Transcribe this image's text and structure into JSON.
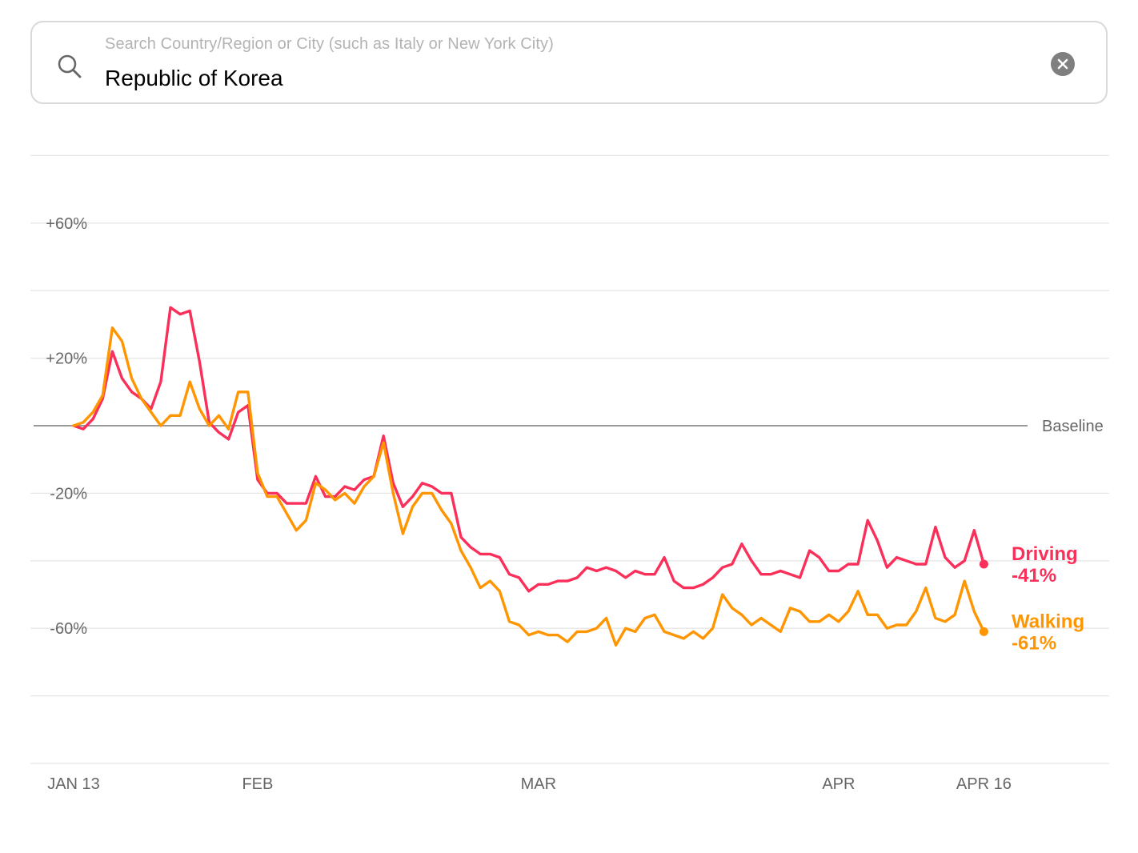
{
  "search": {
    "placeholder": "Search Country/Region or City (such as Italy or New York City)",
    "value": "Republic of Korea"
  },
  "icons": {
    "search": "search-icon",
    "clear": "clear-icon"
  },
  "chart_data": {
    "type": "line",
    "title": "",
    "xlabel": "",
    "ylabel": "",
    "ylim": [
      -100,
      80
    ],
    "grid": true,
    "y_ticks": [
      "+60%",
      "+20%",
      "-20%",
      "-60%"
    ],
    "baseline_label": "Baseline",
    "x_ticks": [
      "JAN 13",
      "FEB",
      "MAR",
      "APR",
      "APR 16"
    ],
    "x_start": "2020-01-13",
    "x": [
      "01-13",
      "01-14",
      "01-15",
      "01-16",
      "01-17",
      "01-18",
      "01-19",
      "01-20",
      "01-21",
      "01-22",
      "01-23",
      "01-24",
      "01-25",
      "01-26",
      "01-27",
      "01-28",
      "01-29",
      "01-30",
      "01-31",
      "02-01",
      "02-02",
      "02-03",
      "02-04",
      "02-05",
      "02-06",
      "02-07",
      "02-08",
      "02-09",
      "02-10",
      "02-11",
      "02-12",
      "02-13",
      "02-14",
      "02-15",
      "02-16",
      "02-17",
      "02-18",
      "02-19",
      "02-20",
      "02-21",
      "02-22",
      "02-23",
      "02-24",
      "02-25",
      "02-26",
      "02-27",
      "02-28",
      "02-29",
      "03-01",
      "03-02",
      "03-03",
      "03-04",
      "03-05",
      "03-06",
      "03-07",
      "03-08",
      "03-09",
      "03-10",
      "03-11",
      "03-12",
      "03-13",
      "03-14",
      "03-15",
      "03-16",
      "03-17",
      "03-18",
      "03-19",
      "03-20",
      "03-21",
      "03-22",
      "03-23",
      "03-24",
      "03-25",
      "03-26",
      "03-27",
      "03-28",
      "03-29",
      "03-30",
      "03-31",
      "04-01",
      "04-02",
      "04-03",
      "04-04",
      "04-05",
      "04-06",
      "04-07",
      "04-08",
      "04-09",
      "04-10",
      "04-11",
      "04-12",
      "04-13",
      "04-14",
      "04-15",
      "04-16"
    ],
    "series": [
      {
        "name": "Driving",
        "end_label": "-41%",
        "color": "#fa2f5a",
        "values": [
          0,
          -1,
          2,
          8,
          22,
          14,
          10,
          8,
          5,
          13,
          35,
          33,
          34,
          19,
          1,
          -2,
          -4,
          4,
          6,
          -16,
          -20,
          -20,
          -23,
          -23,
          -23,
          -15,
          -21,
          -21,
          -18,
          -19,
          -16,
          -15,
          -3,
          -17,
          -24,
          -21,
          -17,
          -18,
          -20,
          -20,
          -33,
          -36,
          -38,
          -38,
          -39,
          -44,
          -45,
          -49,
          -47,
          -47,
          -46,
          -46,
          -45,
          -42,
          -43,
          -42,
          -43,
          -45,
          -43,
          -44,
          -44,
          -39,
          -46,
          -48,
          -48,
          -47,
          -45,
          -42,
          -41,
          -35,
          -40,
          -44,
          -44,
          -43,
          -44,
          -45,
          -37,
          -39,
          -43,
          -43,
          -41,
          -41,
          -28,
          -34,
          -42,
          -39,
          -40,
          -41,
          -41,
          -30,
          -39,
          -42,
          -40,
          -31,
          -41
        ]
      },
      {
        "name": "Walking",
        "end_label": "-61%",
        "color": "#ff9500",
        "values": [
          0,
          1,
          4,
          9,
          29,
          25,
          14,
          8,
          4,
          0,
          3,
          3,
          13,
          5,
          0,
          3,
          -1,
          10,
          10,
          -14,
          -21,
          -21,
          -26,
          -31,
          -28,
          -17,
          -19,
          -22,
          -20,
          -23,
          -18,
          -15,
          -5,
          -20,
          -32,
          -24,
          -20,
          -20,
          -25,
          -29,
          -37,
          -42,
          -48,
          -46,
          -49,
          -58,
          -59,
          -62,
          -61,
          -62,
          -62,
          -64,
          -61,
          -61,
          -60,
          -57,
          -65,
          -60,
          -61,
          -57,
          -56,
          -61,
          -62,
          -63,
          -61,
          -63,
          -60,
          -50,
          -54,
          -56,
          -59,
          -57,
          -59,
          -61,
          -54,
          -55,
          -58,
          -58,
          -56,
          -58,
          -55,
          -49,
          -56,
          -56,
          -60,
          -59,
          -59,
          -55,
          -48,
          -57,
          -58,
          -56,
          -46,
          -55,
          -61
        ]
      }
    ]
  }
}
